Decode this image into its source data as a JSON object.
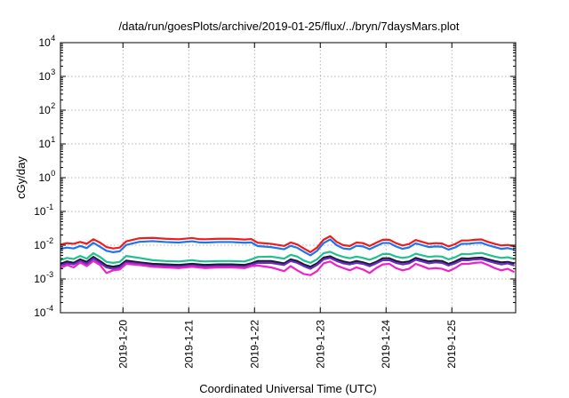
{
  "chart_data": {
    "type": "line",
    "title": "/data/run/goesPlots/archive/2019-01-25/flux/../bryn/7daysMars.plot",
    "xlabel": "Coordinated Universal Time (UTC)",
    "ylabel": "cGy/day",
    "yscale": "log",
    "ylim": [
      0.0001,
      10000
    ],
    "xlim": [
      0,
      6.92
    ],
    "y_ticks": [
      {
        "value": 0.0001,
        "base": "10",
        "exp": "-4"
      },
      {
        "value": 0.001,
        "base": "10",
        "exp": "-3"
      },
      {
        "value": 0.01,
        "base": "10",
        "exp": "-2"
      },
      {
        "value": 0.1,
        "base": "10",
        "exp": "-1"
      },
      {
        "value": 1,
        "base": "10",
        "exp": "0"
      },
      {
        "value": 10,
        "base": "10",
        "exp": "1"
      },
      {
        "value": 100,
        "base": "10",
        "exp": "2"
      },
      {
        "value": 1000,
        "base": "10",
        "exp": "3"
      },
      {
        "value": 10000,
        "base": "10",
        "exp": "4"
      }
    ],
    "x_ticks": [
      {
        "value": 0.95,
        "label": "2019-1-20"
      },
      {
        "value": 1.95,
        "label": "2019-1-21"
      },
      {
        "value": 2.95,
        "label": "2019-1-22"
      },
      {
        "value": 3.95,
        "label": "2019-1-23"
      },
      {
        "value": 4.95,
        "label": "2019-1-24"
      },
      {
        "value": 5.95,
        "label": "2019-1-25"
      }
    ],
    "x": [
      0,
      0.1,
      0.2,
      0.3,
      0.4,
      0.5,
      0.6,
      0.7,
      0.8,
      0.9,
      1.0,
      1.2,
      1.4,
      1.6,
      1.8,
      2.0,
      2.1,
      2.2,
      2.4,
      2.6,
      2.8,
      2.9,
      3.0,
      3.2,
      3.4,
      3.5,
      3.6,
      3.7,
      3.8,
      3.9,
      4.0,
      4.1,
      4.2,
      4.3,
      4.4,
      4.5,
      4.6,
      4.7,
      4.8,
      4.9,
      5.0,
      5.1,
      5.2,
      5.3,
      5.4,
      5.5,
      5.6,
      5.7,
      5.8,
      5.9,
      6.0,
      6.1,
      6.2,
      6.3,
      6.4,
      6.5,
      6.6,
      6.7,
      6.8,
      6.9
    ],
    "series": [
      {
        "name": "red",
        "color": "#ee1c1c",
        "values": [
          0.0105,
          0.0115,
          0.011,
          0.0125,
          0.011,
          0.015,
          0.012,
          0.0088,
          0.008,
          0.0085,
          0.013,
          0.016,
          0.0165,
          0.0155,
          0.015,
          0.0163,
          0.0152,
          0.015,
          0.0155,
          0.0155,
          0.0147,
          0.0152,
          0.0118,
          0.011,
          0.0095,
          0.012,
          0.0105,
          0.008,
          0.0062,
          0.0085,
          0.0145,
          0.0185,
          0.0125,
          0.01,
          0.0095,
          0.012,
          0.0115,
          0.0095,
          0.0118,
          0.0145,
          0.0145,
          0.0115,
          0.0098,
          0.0108,
          0.0142,
          0.0125,
          0.011,
          0.0115,
          0.0112,
          0.0092,
          0.0108,
          0.0138,
          0.0138,
          0.0145,
          0.0148,
          0.0125,
          0.011,
          0.0098,
          0.0102,
          0.0092
        ]
      },
      {
        "name": "blue",
        "color": "#1a76ee",
        "values": [
          0.0078,
          0.0085,
          0.008,
          0.0095,
          0.0082,
          0.0118,
          0.009,
          0.0068,
          0.0062,
          0.0066,
          0.0102,
          0.0126,
          0.0132,
          0.0124,
          0.012,
          0.0131,
          0.0122,
          0.012,
          0.0124,
          0.0124,
          0.0118,
          0.0121,
          0.0094,
          0.0088,
          0.0076,
          0.0096,
          0.0084,
          0.0064,
          0.005,
          0.0068,
          0.0115,
          0.0148,
          0.01,
          0.008,
          0.0076,
          0.0096,
          0.0092,
          0.0076,
          0.0094,
          0.0116,
          0.0116,
          0.0092,
          0.0078,
          0.0086,
          0.0113,
          0.01,
          0.0088,
          0.0092,
          0.009,
          0.0074,
          0.0086,
          0.011,
          0.011,
          0.0116,
          0.0118,
          0.01,
          0.0088,
          0.0078,
          0.0082,
          0.0074
        ]
      },
      {
        "name": "teal",
        "color": "#20c090",
        "values": [
          0.0036,
          0.0042,
          0.0039,
          0.0048,
          0.004,
          0.0058,
          0.0045,
          0.0032,
          0.003,
          0.0032,
          0.0048,
          0.0042,
          0.0036,
          0.0034,
          0.0033,
          0.0036,
          0.0034,
          0.0033,
          0.0034,
          0.0034,
          0.0033,
          0.0038,
          0.0045,
          0.0046,
          0.004,
          0.0052,
          0.0046,
          0.0035,
          0.003,
          0.0038,
          0.0058,
          0.0064,
          0.0052,
          0.0045,
          0.0041,
          0.0046,
          0.0042,
          0.0037,
          0.0044,
          0.0055,
          0.0055,
          0.0046,
          0.0042,
          0.0045,
          0.0056,
          0.005,
          0.0045,
          0.0047,
          0.0046,
          0.0038,
          0.0044,
          0.0055,
          0.0054,
          0.0057,
          0.0059,
          0.0052,
          0.0046,
          0.0042,
          0.0044,
          0.0039
        ]
      },
      {
        "name": "black",
        "color": "#1a1a2e",
        "values": [
          0.0028,
          0.0033,
          0.003,
          0.0038,
          0.0032,
          0.0045,
          0.0034,
          0.0025,
          0.0023,
          0.0025,
          0.0035,
          0.0031,
          0.0028,
          0.0027,
          0.0026,
          0.0028,
          0.0027,
          0.0026,
          0.0027,
          0.0027,
          0.0026,
          0.0029,
          0.0034,
          0.0034,
          0.0029,
          0.0038,
          0.0034,
          0.0027,
          0.0023,
          0.0029,
          0.0043,
          0.0047,
          0.0038,
          0.0033,
          0.003,
          0.0034,
          0.0031,
          0.0027,
          0.0032,
          0.0041,
          0.0041,
          0.0034,
          0.0031,
          0.0033,
          0.0042,
          0.0037,
          0.0033,
          0.0035,
          0.0034,
          0.0028,
          0.0033,
          0.0041,
          0.004,
          0.0042,
          0.0043,
          0.0038,
          0.0034,
          0.0031,
          0.0032,
          0.0029
        ]
      },
      {
        "name": "purple",
        "color": "#6a2cc0",
        "values": [
          0.0025,
          0.0029,
          0.0027,
          0.0034,
          0.0028,
          0.004,
          0.003,
          0.0022,
          0.002,
          0.0022,
          0.0031,
          0.0028,
          0.0025,
          0.0024,
          0.0023,
          0.0025,
          0.0024,
          0.0023,
          0.0024,
          0.0024,
          0.0023,
          0.0026,
          0.003,
          0.003,
          0.0026,
          0.0034,
          0.003,
          0.0024,
          0.002,
          0.0026,
          0.0038,
          0.0042,
          0.0034,
          0.0029,
          0.0027,
          0.003,
          0.0028,
          0.0024,
          0.0029,
          0.0036,
          0.0036,
          0.003,
          0.0027,
          0.0029,
          0.0037,
          0.0033,
          0.0029,
          0.0031,
          0.003,
          0.0025,
          0.0029,
          0.0036,
          0.0036,
          0.0038,
          0.0039,
          0.0034,
          0.003,
          0.0027,
          0.0029,
          0.0025
        ]
      },
      {
        "name": "magenta",
        "color": "#ee22cc",
        "values": [
          0.0021,
          0.0026,
          0.0022,
          0.0031,
          0.0024,
          0.0034,
          0.0026,
          0.0015,
          0.0018,
          0.0019,
          0.0028,
          0.0026,
          0.0023,
          0.0022,
          0.0021,
          0.0023,
          0.0022,
          0.0021,
          0.0022,
          0.0022,
          0.0021,
          0.0024,
          0.0025,
          0.0022,
          0.0017,
          0.0024,
          0.0018,
          0.0014,
          0.0013,
          0.0017,
          0.0029,
          0.0033,
          0.0025,
          0.0021,
          0.0018,
          0.0022,
          0.0019,
          0.0015,
          0.0021,
          0.0027,
          0.0028,
          0.0021,
          0.0018,
          0.002,
          0.0028,
          0.0024,
          0.002,
          0.0021,
          0.002,
          0.0017,
          0.0021,
          0.0028,
          0.0028,
          0.003,
          0.0031,
          0.0026,
          0.0021,
          0.0018,
          0.002,
          0.0016
        ]
      }
    ]
  }
}
